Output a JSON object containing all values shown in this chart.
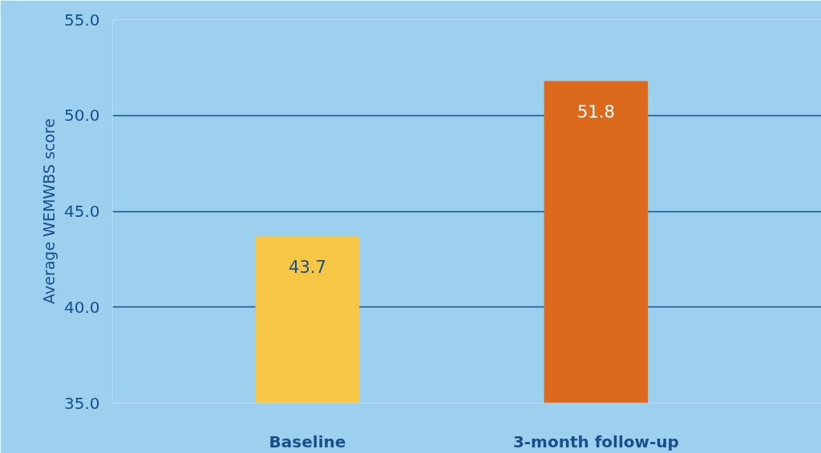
{
  "chart_data": {
    "type": "bar",
    "ylabel": "Average WEMWBS score",
    "categories": [
      "Baseline",
      "3-month follow-up"
    ],
    "values": [
      43.7,
      51.8
    ],
    "colors": [
      "#f7c645",
      "#db6a1d"
    ],
    "ylim": [
      35,
      55
    ],
    "yticks": [
      {
        "value": 35,
        "label": "35.0"
      },
      {
        "value": 40,
        "label": "40.0"
      },
      {
        "value": 45,
        "label": "45.0"
      },
      {
        "value": 50,
        "label": "50.0"
      },
      {
        "value": 55,
        "label": "55.0"
      }
    ],
    "grid": "y",
    "data_labels": true
  }
}
